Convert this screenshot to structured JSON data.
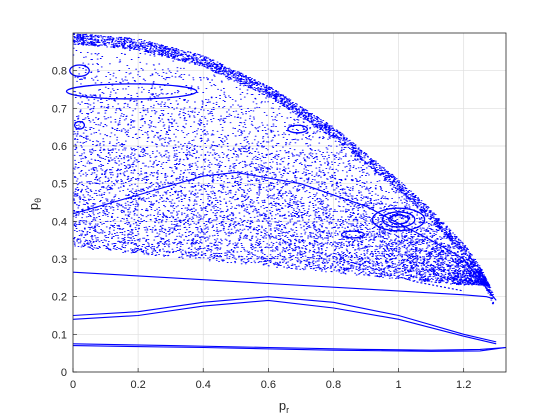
{
  "chart_data": {
    "type": "scatter",
    "title": "",
    "xlabel": "p",
    "xlabel_sub": "r",
    "ylabel": "p",
    "ylabel_sub": "θ",
    "xlim": [
      0,
      1.33
    ],
    "ylim": [
      0,
      0.9
    ],
    "xticks": [
      "0",
      "0.2",
      "0.4",
      "0.6",
      "0.8",
      "1",
      "1.2"
    ],
    "yticks": [
      "0",
      "0.1",
      "0.2",
      "0.3",
      "0.4",
      "0.5",
      "0.6",
      "0.7",
      "0.8"
    ],
    "grid": true,
    "marker_color": "#0000ff",
    "boundary": {
      "x": [
        0,
        0.2,
        0.4,
        0.6,
        0.8,
        1.0,
        1.1,
        1.2,
        1.25,
        1.3
      ],
      "y": [
        0.9,
        0.885,
        0.84,
        0.76,
        0.65,
        0.51,
        0.43,
        0.34,
        0.28,
        0.19
      ]
    },
    "curves": [
      {
        "name": "",
        "x": [
          0,
          0.2,
          0.4,
          0.5,
          0.7,
          0.9,
          1.1,
          1.2,
          1.3
        ],
        "y": [
          0.42,
          0.47,
          0.52,
          0.53,
          0.5,
          0.44,
          0.35,
          0.3,
          0.19
        ]
      },
      {
        "name": "",
        "x": [
          0,
          0.3,
          0.6,
          0.9,
          1.1,
          1.2,
          1.27,
          1.29
        ],
        "y": [
          0.265,
          0.25,
          0.235,
          0.22,
          0.21,
          0.205,
          0.2,
          0.195
        ]
      },
      {
        "name": "",
        "x": [
          0,
          0.2,
          0.4,
          0.6,
          0.8,
          1.0,
          1.2,
          1.3
        ],
        "y": [
          0.15,
          0.16,
          0.185,
          0.2,
          0.185,
          0.15,
          0.1,
          0.08
        ]
      },
      {
        "name": "",
        "x": [
          0,
          0.2,
          0.4,
          0.6,
          0.8,
          1.0,
          1.2,
          1.3
        ],
        "y": [
          0.14,
          0.15,
          0.175,
          0.19,
          0.17,
          0.14,
          0.095,
          0.075
        ]
      },
      {
        "name": "",
        "x": [
          0,
          0.3,
          0.6,
          0.9,
          1.1,
          1.25,
          1.33
        ],
        "y": [
          0.075,
          0.07,
          0.065,
          0.06,
          0.058,
          0.06,
          0.065
        ]
      },
      {
        "name": "",
        "x": [
          0,
          0.4,
          0.8,
          1.1,
          1.25,
          1.33
        ],
        "y": [
          0.07,
          0.065,
          0.058,
          0.055,
          0.056,
          0.065
        ]
      },
      {
        "name": "",
        "x": [
          0.45,
          0.7,
          0.9,
          1.05,
          1.2
        ],
        "y": [
          0.415,
          0.33,
          0.28,
          0.24,
          0.215
        ]
      }
    ],
    "islands": [
      {
        "cx": 1.0,
        "cy": 0.405,
        "rx": 0.03,
        "ry": 0.012
      },
      {
        "cx": 1.0,
        "cy": 0.405,
        "rx": 0.05,
        "ry": 0.02
      },
      {
        "cx": 1.0,
        "cy": 0.405,
        "rx": 0.08,
        "ry": 0.03
      },
      {
        "cx": 0.86,
        "cy": 0.365,
        "rx": 0.035,
        "ry": 0.009
      },
      {
        "cx": 0.69,
        "cy": 0.645,
        "rx": 0.03,
        "ry": 0.01
      },
      {
        "cx": 0.18,
        "cy": 0.745,
        "rx": 0.2,
        "ry": 0.02
      },
      {
        "cx": 0.02,
        "cy": 0.8,
        "rx": 0.03,
        "ry": 0.015
      },
      {
        "cx": 0.02,
        "cy": 0.655,
        "rx": 0.015,
        "ry": 0.01
      }
    ]
  }
}
